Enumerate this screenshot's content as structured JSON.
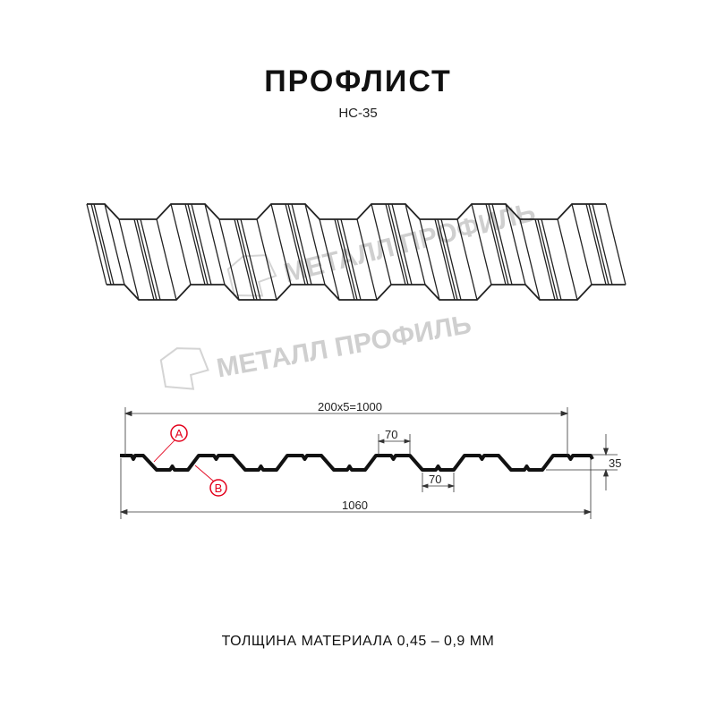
{
  "title": "ПРОФЛИСТ",
  "model": "НС-35",
  "watermark": "МЕТАЛЛ ПРОФИЛЬ",
  "dimensions": {
    "pitch_total": "200x5=1000",
    "full_width": "1060",
    "top_flange": "70",
    "bottom_flange": "70",
    "height": "35"
  },
  "markers": {
    "a": "A",
    "b": "B"
  },
  "marker_color": "#e3001b",
  "thickness_note": "ТОЛЩИНА МАТЕРИАЛА 0,45 – 0,9 ММ"
}
